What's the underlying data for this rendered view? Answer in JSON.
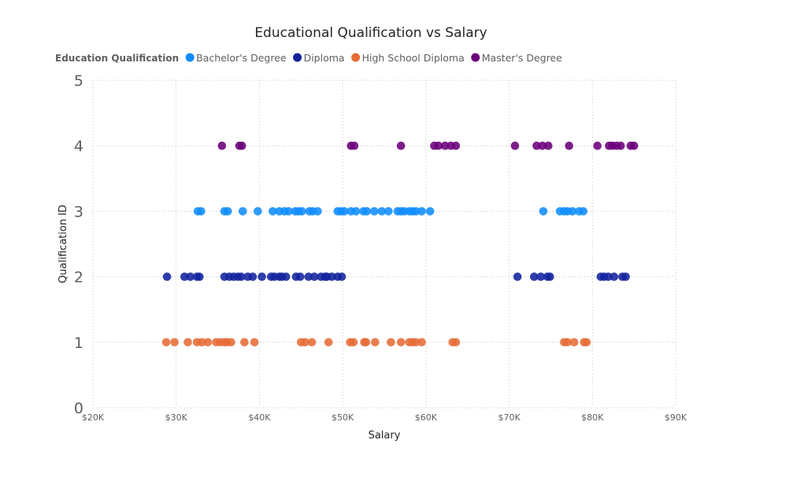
{
  "chart_data": {
    "type": "scatter",
    "title": "Educational Qualification vs Salary",
    "xlabel": "Salary",
    "ylabel": "Qualification ID",
    "xlim": [
      20000,
      90000
    ],
    "ylim": [
      0,
      5
    ],
    "x_ticks": [
      20000,
      30000,
      40000,
      50000,
      60000,
      70000,
      80000,
      90000
    ],
    "x_tick_labels": [
      "$20K",
      "$30K",
      "$40K",
      "$50K",
      "$60K",
      "$70K",
      "$80K",
      "$90K"
    ],
    "y_ticks": [
      0,
      1,
      2,
      3,
      4,
      5
    ],
    "y_tick_labels": [
      "0",
      "1",
      "2",
      "3",
      "4",
      "5"
    ],
    "grid": true,
    "legend": {
      "title": "Education Qualification",
      "position": "top-left"
    },
    "series": [
      {
        "name": "Bachelor's Degree",
        "color": "#118DFF",
        "x": [
          32600,
          33000,
          35800,
          36200,
          38000,
          39800,
          41600,
          42400,
          43000,
          43500,
          44300,
          44700,
          45100,
          46000,
          46400,
          47000,
          49400,
          49800,
          50200,
          51000,
          51600,
          52500,
          52900,
          53800,
          54700,
          55500,
          56600,
          57000,
          57400,
          58000,
          58400,
          58800,
          59500,
          60500,
          74100,
          76100,
          76600,
          77000,
          77600,
          78400,
          78900
        ],
        "y": [
          3,
          3,
          3,
          3,
          3,
          3,
          3,
          3,
          3,
          3,
          3,
          3,
          3,
          3,
          3,
          3,
          3,
          3,
          3,
          3,
          3,
          3,
          3,
          3,
          3,
          3,
          3,
          3,
          3,
          3,
          3,
          3,
          3,
          3,
          3,
          3,
          3,
          3,
          3,
          3,
          3
        ]
      },
      {
        "name": "Diploma",
        "color": "#12239E",
        "x": [
          28900,
          31000,
          31700,
          32500,
          32800,
          35800,
          36400,
          36900,
          37400,
          37800,
          38600,
          39200,
          40300,
          41400,
          41800,
          42400,
          42700,
          43200,
          44400,
          44900,
          45900,
          46600,
          47400,
          47900,
          48100,
          48700,
          49400,
          49900,
          71000,
          73000,
          73800,
          74600,
          74900,
          81000,
          81400,
          81900,
          82600,
          83600,
          84000
        ],
        "y": [
          2,
          2,
          2,
          2,
          2,
          2,
          2,
          2,
          2,
          2,
          2,
          2,
          2,
          2,
          2,
          2,
          2,
          2,
          2,
          2,
          2,
          2,
          2,
          2,
          2,
          2,
          2,
          2,
          2,
          2,
          2,
          2,
          2,
          2,
          2,
          2,
          2,
          2,
          2
        ]
      },
      {
        "name": "High School Diploma",
        "color": "#E66C37",
        "x": [
          28800,
          29800,
          31400,
          32500,
          33100,
          33800,
          34800,
          35300,
          35800,
          36100,
          36600,
          38200,
          39400,
          45000,
          45500,
          46300,
          48300,
          50900,
          51300,
          52600,
          52800,
          53900,
          55800,
          57000,
          58000,
          58400,
          58800,
          59500,
          63200,
          63600,
          76600,
          77000,
          77800,
          79000,
          79300
        ],
        "y": [
          1,
          1,
          1,
          1,
          1,
          1,
          1,
          1,
          1,
          1,
          1,
          1,
          1,
          1,
          1,
          1,
          1,
          1,
          1,
          1,
          1,
          1,
          1,
          1,
          1,
          1,
          1,
          1,
          1,
          1,
          1,
          1,
          1,
          1,
          1
        ]
      },
      {
        "name": "Master's Degree",
        "color": "#6B007B",
        "x": [
          35500,
          37600,
          37900,
          51000,
          51400,
          57000,
          61000,
          61500,
          62300,
          63000,
          63600,
          70700,
          73300,
          74000,
          74700,
          77200,
          80600,
          82000,
          82400,
          82900,
          83400,
          84600,
          85000
        ],
        "y": [
          4,
          4,
          4,
          4,
          4,
          4,
          4,
          4,
          4,
          4,
          4,
          4,
          4,
          4,
          4,
          4,
          4,
          4,
          4,
          4,
          4,
          4,
          4
        ]
      }
    ]
  }
}
